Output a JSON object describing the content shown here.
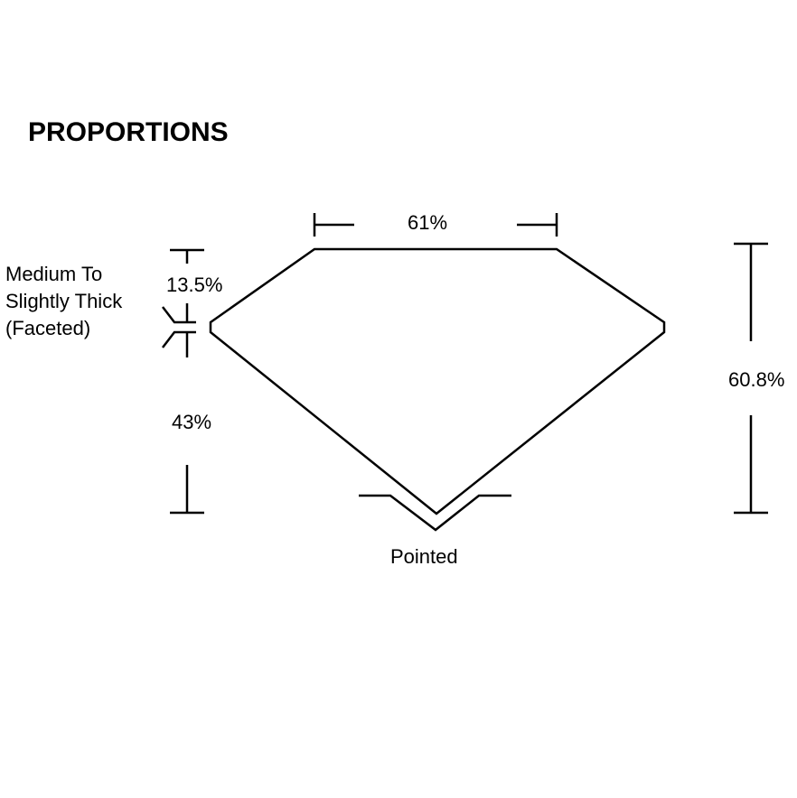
{
  "title": "PROPORTIONS",
  "labels": {
    "table": "61%",
    "crown_height": "13.5%",
    "girdle_line1": "Medium To",
    "girdle_line2": "Slightly Thick",
    "girdle_line3": "(Faceted)",
    "pavilion_depth": "43%",
    "total_depth": "60.8%",
    "culet": "Pointed"
  },
  "colors": {
    "line": "#000000",
    "background": "#ffffff"
  }
}
